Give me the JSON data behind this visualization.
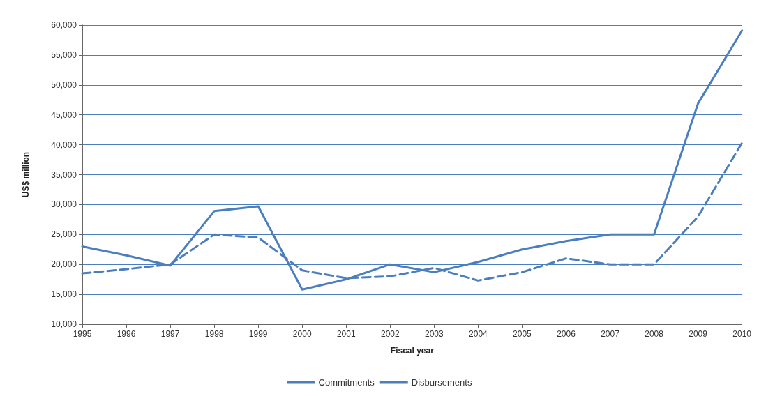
{
  "chart_data": {
    "type": "line",
    "xlabel": "Fiscal year",
    "ylabel": "US$ million",
    "categories": [
      "1995",
      "1996",
      "1997",
      "1998",
      "1999",
      "2000",
      "2001",
      "2002",
      "2003",
      "2004",
      "2005",
      "2006",
      "2007",
      "2008",
      "2009",
      "2010"
    ],
    "series": [
      {
        "name": "Commitments",
        "color": "#4a7ebf",
        "line_style": "solid",
        "values": [
          23000,
          21500,
          19800,
          28900,
          29700,
          15800,
          17500,
          20000,
          18700,
          20400,
          22500,
          23900,
          25000,
          25000,
          46900,
          59100
        ]
      },
      {
        "name": "Disbursements",
        "color": "#4a7ebf",
        "line_style": "dashed",
        "values": [
          18500,
          19200,
          20000,
          25000,
          24500,
          19000,
          17700,
          18000,
          19400,
          17300,
          18700,
          21000,
          20000,
          20000,
          28000,
          40300
        ]
      }
    ],
    "ylim": [
      10000,
      60000
    ],
    "yticks": [
      {
        "value": 10000,
        "label": "10,000"
      },
      {
        "value": 15000,
        "label": "15,000"
      },
      {
        "value": 20000,
        "label": "20,000"
      },
      {
        "value": 25000,
        "label": "25,000"
      },
      {
        "value": 30000,
        "label": "30,000"
      },
      {
        "value": 35000,
        "label": "35,000"
      },
      {
        "value": 40000,
        "label": "40,000"
      },
      {
        "value": 45000,
        "label": "45,000"
      },
      {
        "value": 50000,
        "label": "50,000"
      },
      {
        "value": 55000,
        "label": "55,000"
      },
      {
        "value": 60000,
        "label": "60,000"
      }
    ],
    "grid": "y",
    "legend": "bottom",
    "marker": "none"
  }
}
